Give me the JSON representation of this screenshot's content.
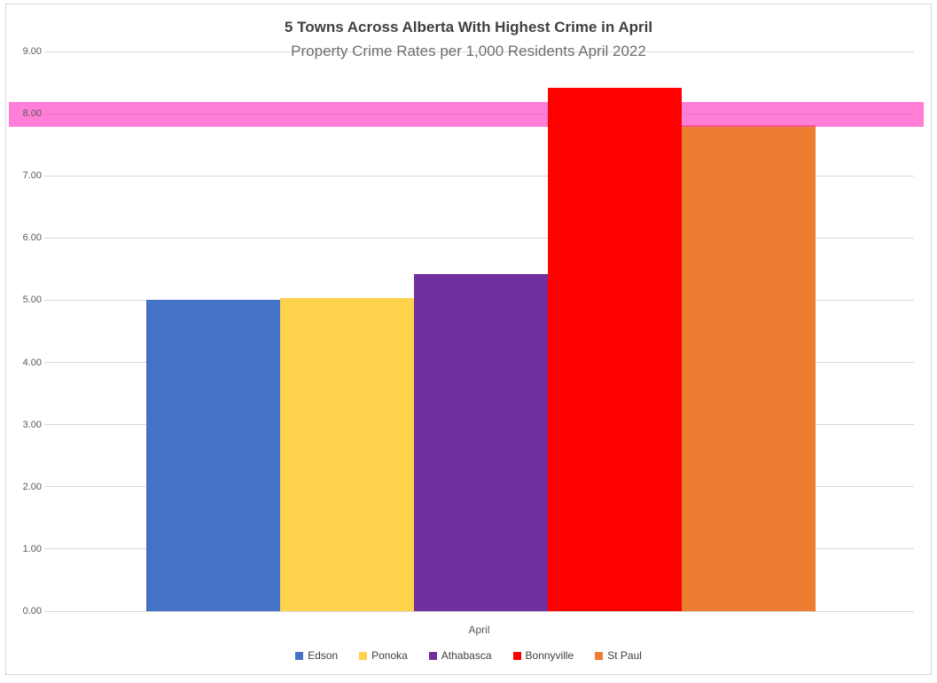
{
  "chart_data": {
    "type": "bar",
    "title": "5 Towns Across Alberta With Highest Crime in April",
    "subtitle": "Property Crime Rates per 1,000 Residents April 2022",
    "xlabel": "April",
    "ylabel": "",
    "categories": [
      "April"
    ],
    "series": [
      {
        "name": "Edson",
        "values": [
          5.01
        ],
        "color": "#4472C4"
      },
      {
        "name": "Ponoka",
        "values": [
          5.04
        ],
        "color": "#FFD24C"
      },
      {
        "name": "Athabasca",
        "values": [
          5.42
        ],
        "color": "#7030A0"
      },
      {
        "name": "Bonnyville",
        "values": [
          8.42
        ],
        "color": "#FF0000"
      },
      {
        "name": "St Paul",
        "values": [
          7.82
        ],
        "color": "#ED7D31"
      }
    ],
    "ylim": [
      0,
      9
    ],
    "ytick_step": 1,
    "yticks": [
      "0.00",
      "1.00",
      "2.00",
      "3.00",
      "4.00",
      "5.00",
      "6.00",
      "7.00",
      "8.00",
      "9.00"
    ],
    "grid": true,
    "grid_color": "#D9D9D9",
    "legend_position": "bottom",
    "highlight_band": {
      "from": 7.79,
      "to": 8.19,
      "color": "#FF40C5",
      "opacity": 0.67,
      "drawn_behind_series": "Bonnyville"
    }
  },
  "colors": {
    "frame_border": "#D6D6D6",
    "title_text": "#404040",
    "subtitle_text": "#6E6E6E",
    "tick_text": "#595959",
    "legend_text": "#404040",
    "background": "#FFFFFF"
  }
}
